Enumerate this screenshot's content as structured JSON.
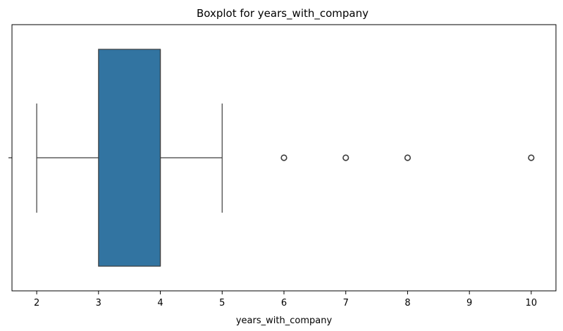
{
  "chart_data": {
    "type": "boxplot",
    "title": "Boxplot for years_with_company",
    "xlabel": "years_with_company",
    "ylabel": "",
    "xlim": [
      1.6,
      10.4
    ],
    "x_ticks": [
      2,
      3,
      4,
      5,
      6,
      7,
      8,
      9,
      10
    ],
    "grid": false,
    "box": {
      "whisker_low": 2,
      "q1": 3,
      "median": 4,
      "q3": 4,
      "whisker_high": 5,
      "outliers": [
        6,
        7,
        8,
        10
      ],
      "color": "#3274a1",
      "edge_color": "#3d3d3d"
    }
  }
}
